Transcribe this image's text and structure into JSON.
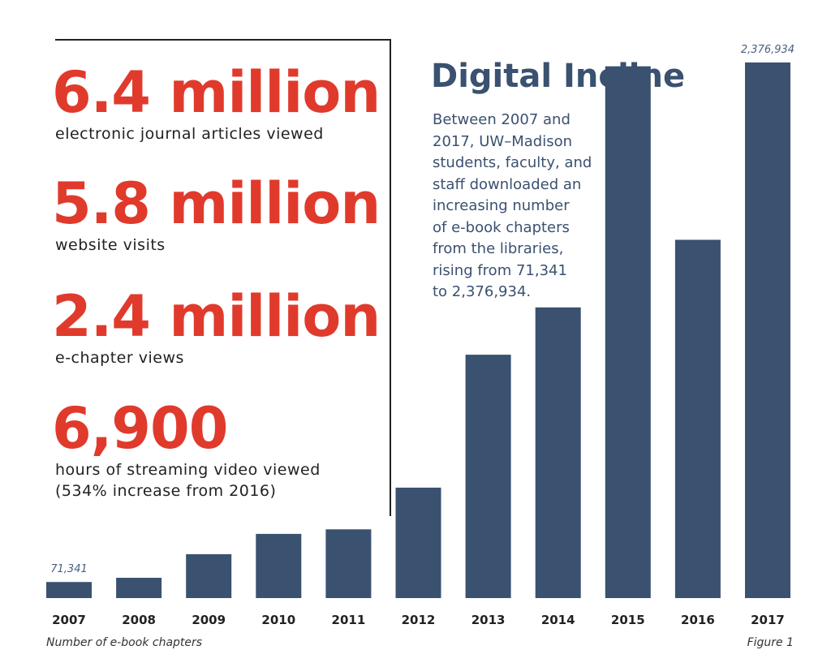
{
  "stats": [
    {
      "value": "6.4 million",
      "label": "electronic journal articles viewed"
    },
    {
      "value": "5.8 million",
      "label": "website visits"
    },
    {
      "value": "2.4 million",
      "label": "e-chapter views"
    },
    {
      "value": "6,900",
      "label": "hours of streaming video viewed\n(534% increase from 2016)"
    }
  ],
  "colors": {
    "accent": "#e03a2c",
    "bar": "#3a5170",
    "text": "#222222"
  },
  "chart_data": {
    "type": "bar",
    "title": "Digital Incline",
    "description": "Between 2007 and\n2017, UW–Madison\nstudents, faculty, and\nstaff downloaded an\nincreasing number\nof e-book chapters\nfrom the libraries,\nrising from 71,341\nto 2,376,934.",
    "xlabel": "Number of e-book chapters",
    "ylabel": "",
    "ylim": [
      0,
      2376934
    ],
    "grid": false,
    "categories": [
      "2007",
      "2008",
      "2009",
      "2010",
      "2011",
      "2012",
      "2013",
      "2014",
      "2015",
      "2016",
      "2017"
    ],
    "values": [
      71341,
      90000,
      195000,
      285000,
      305000,
      490000,
      1080000,
      1290000,
      2360000,
      1590000,
      2376934
    ],
    "data_labels": [
      {
        "index": 0,
        "text": "71,341"
      },
      {
        "index": 10,
        "text": "2,376,934"
      }
    ],
    "figure_label": "Figure 1"
  }
}
